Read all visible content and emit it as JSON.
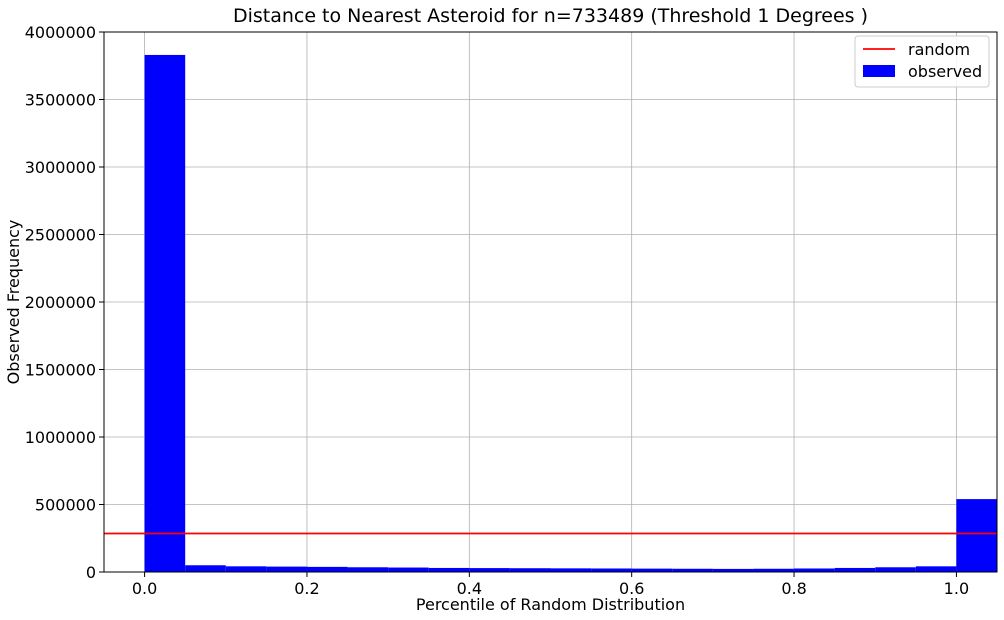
{
  "chart_data": {
    "type": "bar",
    "title": "Distance to Nearest Asteroid for n=733489 (Threshold 1 Degrees )",
    "xlabel": "Percentile of Random Distribution",
    "ylabel": "Observed Frequency",
    "xlim": [
      -0.05,
      1.05
    ],
    "ylim": [
      0,
      4000000
    ],
    "xticks": [
      0.0,
      0.2,
      0.4,
      0.6,
      0.8,
      1.0
    ],
    "xtick_labels": [
      "0.0",
      "0.2",
      "0.4",
      "0.6",
      "0.8",
      "1.0"
    ],
    "yticks": [
      0,
      500000,
      1000000,
      1500000,
      2000000,
      2500000,
      3000000,
      3500000,
      4000000
    ],
    "ytick_labels": [
      "0",
      "500000",
      "1000000",
      "1500000",
      "2000000",
      "2500000",
      "3000000",
      "3500000",
      "4000000"
    ],
    "grid": true,
    "legend_position": "top-right",
    "bins": [
      0.0,
      0.05,
      0.1,
      0.15,
      0.2,
      0.25,
      0.3,
      0.35,
      0.4,
      0.45,
      0.5,
      0.55,
      0.6,
      0.65,
      0.7,
      0.75,
      0.8,
      0.85,
      0.9,
      0.95,
      1.0
    ],
    "series": [
      {
        "name": "observed",
        "kind": "histogram",
        "color": "#0000ff",
        "values": [
          3830000,
          50000,
          42000,
          40000,
          38000,
          35000,
          33000,
          30000,
          29000,
          28000,
          27000,
          26000,
          25000,
          24000,
          23000,
          24000,
          26000,
          30000,
          35000,
          42000,
          540000
        ]
      },
      {
        "name": "random",
        "kind": "hline",
        "color": "#ff0000",
        "y": 285000
      }
    ]
  }
}
